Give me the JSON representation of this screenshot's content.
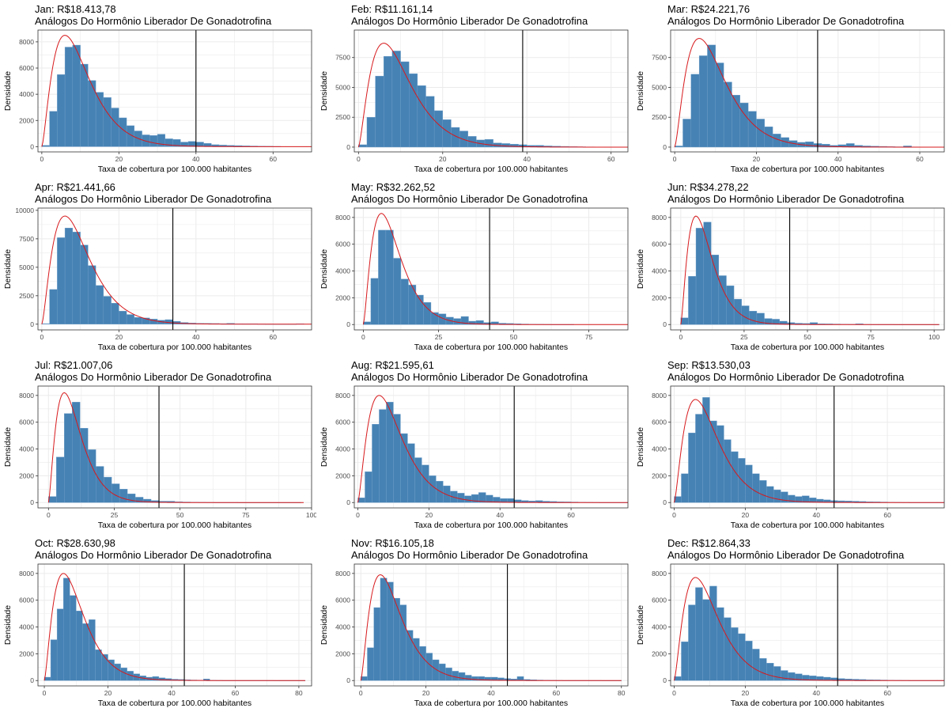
{
  "common": {
    "subtitle": "Análogos Do Hormônio Liberador De Gonadotrofina",
    "xlabel": "Taxa de cobertura por 100.000 habitantes",
    "ylabel": "Densidade",
    "colors": {
      "bars": "#4682b4",
      "bar_edge": "#6f9fca",
      "density_curve": "#d7191c",
      "vline": "#000000",
      "grid": "#ebebeb",
      "panel_border": "#333333"
    }
  },
  "chart_data": [
    {
      "type": "bar",
      "title": "Jan: R$18.413,78",
      "subtitle": "Análogos Do Hormônio Liberador De Gonadotrofina",
      "xlabel": "Taxa de cobertura por 100.000 habitantes",
      "ylabel": "Densidade",
      "xlim": [
        -1,
        70
      ],
      "ylim": [
        -400,
        8900
      ],
      "xticks": [
        0,
        20,
        40,
        60
      ],
      "yticks": [
        0,
        2000,
        4000,
        6000,
        8000
      ],
      "bin_start": 0,
      "bin_width": 2,
      "values": [
        100,
        2700,
        5500,
        7600,
        7750,
        6300,
        5050,
        4150,
        3750,
        2950,
        2200,
        1600,
        1200,
        900,
        850,
        950,
        600,
        550,
        350,
        400,
        350,
        250,
        150,
        120,
        100,
        80,
        60,
        50,
        40,
        30,
        20
      ],
      "vline": 40,
      "density_peak_x": 6,
      "density_peak_y": 8500,
      "density_end_x": 70
    },
    {
      "type": "bar",
      "title": "Feb: R$11.161,14",
      "subtitle": "Análogos Do Hormônio Liberador De Gonadotrofina",
      "xlabel": "Taxa de cobertura por 100.000 habitantes",
      "ylabel": "Densidade",
      "xlim": [
        -1,
        64
      ],
      "ylim": [
        -400,
        9800
      ],
      "xticks": [
        0,
        20,
        40,
        60
      ],
      "yticks": [
        0,
        2500,
        5000,
        7500
      ],
      "bin_start": 0,
      "bin_width": 2,
      "values": [
        200,
        2500,
        5950,
        7600,
        8050,
        7150,
        6150,
        5150,
        4250,
        3050,
        2300,
        1650,
        1350,
        900,
        600,
        650,
        350,
        300,
        250,
        200,
        150,
        150,
        100,
        80,
        60,
        40,
        30,
        20,
        15,
        10
      ],
      "vline": 39,
      "density_peak_x": 6,
      "density_peak_y": 8700,
      "density_end_x": 64
    },
    {
      "type": "bar",
      "title": "Mar: R$24.221,76",
      "subtitle": "Análogos Do Hormônio Liberador De Gonadotrofina",
      "xlabel": "Taxa de cobertura por 100.000 habitantes",
      "ylabel": "Densidade",
      "xlim": [
        -1,
        66
      ],
      "ylim": [
        -400,
        9800
      ],
      "xticks": [
        0,
        20,
        40,
        60
      ],
      "yticks": [
        0,
        2500,
        5000,
        7500
      ],
      "bin_start": 0,
      "bin_width": 2,
      "values": [
        100,
        2350,
        6100,
        7650,
        8550,
        7050,
        5450,
        4350,
        3700,
        3000,
        2350,
        1700,
        1100,
        800,
        550,
        400,
        450,
        300,
        250,
        150,
        200,
        300,
        150,
        100,
        80,
        60,
        40,
        30,
        100,
        20,
        10
      ],
      "vline": 35,
      "density_peak_x": 6,
      "density_peak_y": 9100,
      "density_end_x": 66
    },
    {
      "type": "bar",
      "title": "Apr: R$21.441,66",
      "subtitle": "Análogos Do Hormônio Liberador De Gonadotrofina",
      "xlabel": "Taxa de cobertura por 100.000 habitantes",
      "ylabel": "Densidade",
      "xlim": [
        -1,
        70
      ],
      "ylim": [
        -500,
        10200
      ],
      "xticks": [
        0,
        20,
        40,
        60
      ],
      "yticks": [
        0,
        2500,
        5000,
        7500,
        10000
      ],
      "bin_start": 0,
      "bin_width": 2,
      "values": [
        50,
        3050,
        7600,
        8450,
        8100,
        6950,
        5150,
        3400,
        2450,
        1850,
        1150,
        850,
        600,
        550,
        450,
        350,
        400,
        250,
        150,
        100,
        80,
        70,
        60,
        50,
        80,
        40,
        30,
        40,
        20,
        15,
        10,
        10,
        10,
        40
      ],
      "vline": 34,
      "density_peak_x": 6,
      "density_peak_y": 9500,
      "density_end_x": 70
    },
    {
      "type": "bar",
      "title": "May: R$32.262,52",
      "subtitle": "Análogos Do Hormônio Liberador De Gonadotrofina",
      "xlabel": "Taxa de cobertura por 100.000 habitantes",
      "ylabel": "Densidade",
      "xlim": [
        -3,
        88
      ],
      "ylim": [
        -400,
        8700
      ],
      "xticks": [
        0,
        25,
        50,
        75
      ],
      "yticks": [
        0,
        2000,
        4000,
        6000,
        8000
      ],
      "bin_start": 0,
      "bin_width": 2.5,
      "values": [
        200,
        3450,
        7050,
        7050,
        4950,
        3400,
        2950,
        2200,
        1650,
        900,
        800,
        550,
        450,
        600,
        250,
        300,
        150,
        200,
        100,
        80,
        60,
        40,
        30,
        20,
        15,
        10,
        10,
        10
      ],
      "vline": 42,
      "density_peak_x": 6,
      "density_peak_y": 8300,
      "density_end_x": 88
    },
    {
      "type": "bar",
      "title": "Jun: R$34.278,22",
      "subtitle": "Análogos Do Hormônio Liberador De Gonadotrofina",
      "xlabel": "Taxa de cobertura por 100.000 habitantes",
      "ylabel": "Densidade",
      "xlim": [
        -4,
        104
      ],
      "ylim": [
        -400,
        8700
      ],
      "xticks": [
        0,
        25,
        50,
        75,
        100
      ],
      "yticks": [
        0,
        2000,
        4000,
        6000,
        8000
      ],
      "bin_start": 0,
      "bin_width": 3,
      "values": [
        500,
        3600,
        7200,
        7650,
        5200,
        3650,
        2900,
        1900,
        1400,
        1000,
        850,
        450,
        400,
        250,
        150,
        100,
        80,
        150,
        60,
        50,
        40,
        30,
        20,
        60,
        15,
        10,
        10,
        10,
        5,
        5,
        5,
        5,
        5,
        5
      ],
      "vline": 43,
      "density_peak_x": 6,
      "density_peak_y": 8100,
      "density_end_x": 102
    },
    {
      "type": "bar",
      "title": "Jul: R$21.007,06",
      "subtitle": "Análogos Do Hormônio Liberador De Gonadotrofina",
      "xlabel": "Taxa de cobertura por 100.000 habitantes",
      "ylabel": "Densidade",
      "xlim": [
        -4,
        100
      ],
      "ylim": [
        -400,
        8700
      ],
      "xticks": [
        0,
        25,
        50,
        75,
        100
      ],
      "yticks": [
        0,
        2000,
        4000,
        6000,
        8000
      ],
      "bin_start": 0,
      "bin_width": 3,
      "values": [
        450,
        3400,
        6650,
        7500,
        5550,
        3950,
        2700,
        1900,
        1400,
        1000,
        650,
        400,
        250,
        150,
        100,
        100,
        60,
        40,
        30,
        20,
        15,
        10,
        10,
        10,
        5,
        5,
        5,
        5,
        5,
        5,
        5,
        5
      ],
      "vline": 42,
      "density_peak_x": 6,
      "density_peak_y": 8200,
      "density_end_x": 97
    },
    {
      "type": "bar",
      "title": "Aug: R$21.595,61",
      "subtitle": "Análogos Do Hormônio Liberador De Gonadotrofina",
      "xlabel": "Taxa de cobertura por 100.000 habitantes",
      "ylabel": "Densidade",
      "xlim": [
        -1,
        76
      ],
      "ylim": [
        -400,
        8700
      ],
      "xticks": [
        0,
        20,
        40,
        60
      ],
      "yticks": [
        0,
        2000,
        4000,
        6000,
        8000
      ],
      "bin_start": 0,
      "bin_width": 2,
      "values": [
        350,
        2300,
        5850,
        6950,
        7500,
        6600,
        5150,
        4400,
        3350,
        2800,
        2000,
        1600,
        1250,
        850,
        700,
        500,
        600,
        750,
        550,
        400,
        300,
        300,
        200,
        150,
        120,
        150,
        100,
        80,
        60,
        50,
        40,
        30,
        20,
        15,
        10,
        10,
        10,
        10
      ],
      "vline": 44,
      "density_peak_x": 6,
      "density_peak_y": 8000,
      "density_end_x": 76
    },
    {
      "type": "bar",
      "title": "Sep: R$13.530,03",
      "subtitle": "Análogos Do Hormônio Liberador De Gonadotrofina",
      "xlabel": "Taxa de cobertura por 100.000 habitantes",
      "ylabel": "Densidade",
      "xlim": [
        -1,
        76
      ],
      "ylim": [
        -400,
        8700
      ],
      "xticks": [
        0,
        20,
        40,
        60
      ],
      "yticks": [
        0,
        2000,
        4000,
        6000,
        8000
      ],
      "bin_start": 0,
      "bin_width": 2,
      "values": [
        450,
        2150,
        5200,
        6600,
        7850,
        6100,
        5750,
        4700,
        3800,
        3300,
        2800,
        2150,
        1650,
        1200,
        950,
        800,
        550,
        450,
        500,
        350,
        250,
        200,
        150,
        130,
        120,
        100,
        80,
        60,
        50,
        40,
        30,
        20,
        15,
        10,
        10,
        10,
        10,
        10
      ],
      "vline": 45,
      "density_peak_x": 6,
      "density_peak_y": 7700,
      "density_end_x": 76
    },
    {
      "type": "bar",
      "title": "Oct: R$28.630,98",
      "subtitle": "Análogos Do Hormônio Liberador De Gonadotrofina",
      "xlabel": "Taxa de cobertura por 100.000 habitantes",
      "ylabel": "Densidade",
      "xlim": [
        -2,
        84
      ],
      "ylim": [
        -400,
        8700
      ],
      "xticks": [
        0,
        20,
        40,
        60,
        80
      ],
      "yticks": [
        0,
        2000,
        4000,
        6000,
        8000
      ],
      "bin_start": 0,
      "bin_width": 2,
      "values": [
        250,
        3050,
        5350,
        7650,
        6350,
        5200,
        4250,
        4550,
        2300,
        1950,
        1550,
        1250,
        950,
        700,
        500,
        350,
        250,
        300,
        200,
        150,
        100,
        80,
        60,
        40,
        30,
        120,
        20,
        15,
        10,
        10,
        10,
        10,
        10,
        10,
        10,
        10,
        5,
        5,
        5,
        5,
        5
      ],
      "vline": 44,
      "density_peak_x": 6,
      "density_peak_y": 8000,
      "density_end_x": 82
    },
    {
      "type": "bar",
      "title": "Nov: R$16.105,18",
      "subtitle": "Análogos Do Hormônio Liberador De Gonadotrofina",
      "xlabel": "Taxa de cobertura por 100.000 habitantes",
      "ylabel": "Densidade",
      "xlim": [
        -2,
        82
      ],
      "ylim": [
        -400,
        8700
      ],
      "xticks": [
        0,
        20,
        40,
        60,
        80
      ],
      "yticks": [
        0,
        2000,
        4000,
        6000,
        8000
      ],
      "bin_start": 0,
      "bin_width": 2,
      "values": [
        300,
        2450,
        5450,
        7650,
        7350,
        6150,
        5650,
        3750,
        3150,
        2550,
        2050,
        1550,
        1250,
        950,
        700,
        600,
        400,
        300,
        300,
        250,
        250,
        200,
        150,
        120,
        300,
        80,
        60,
        40,
        30,
        20,
        15,
        10,
        10,
        10,
        10,
        10,
        10,
        5,
        5,
        5
      ],
      "vline": 45,
      "density_peak_x": 6,
      "density_peak_y": 7900,
      "density_end_x": 80
    },
    {
      "type": "bar",
      "title": "Dec: R$12.864,33",
      "subtitle": "Análogos Do Hormônio Liberador De Gonadotrofina",
      "xlabel": "Taxa de cobertura por 100.000 habitantes",
      "ylabel": "Densidade",
      "xlim": [
        -1,
        76
      ],
      "ylim": [
        -400,
        8700
      ],
      "xticks": [
        0,
        20,
        40,
        60
      ],
      "yticks": [
        0,
        2000,
        4000,
        6000,
        8000
      ],
      "bin_start": 0,
      "bin_width": 2,
      "values": [
        300,
        2900,
        5650,
        6950,
        6050,
        7050,
        5450,
        4700,
        3950,
        3500,
        2950,
        2350,
        1650,
        1300,
        1050,
        750,
        600,
        500,
        400,
        350,
        300,
        250,
        200,
        150,
        120,
        100,
        80,
        60,
        50,
        40,
        30,
        20,
        15,
        10,
        10,
        10,
        10,
        10
      ],
      "vline": 46,
      "density_peak_x": 6,
      "density_peak_y": 7700,
      "density_end_x": 76
    }
  ]
}
